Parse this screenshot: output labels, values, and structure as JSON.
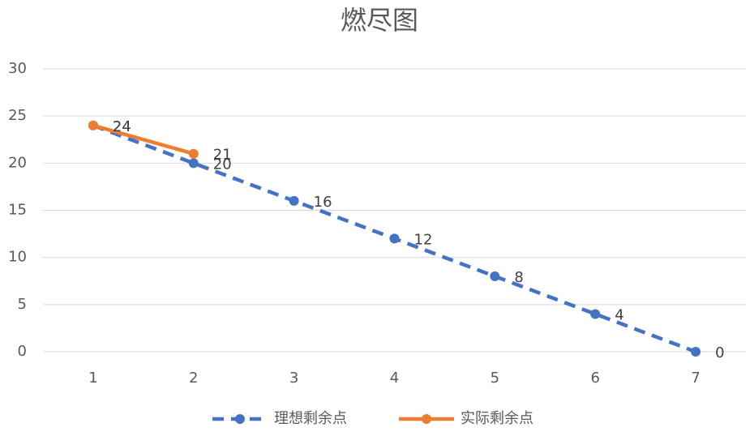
{
  "chart_data": {
    "type": "line",
    "title": "燃尽图",
    "categories": [
      "1",
      "2",
      "3",
      "4",
      "5",
      "6",
      "7"
    ],
    "series": [
      {
        "name": "理想剩余点",
        "color": "#4472c4",
        "style": "dashed",
        "values": [
          24,
          20,
          16,
          12,
          8,
          4,
          0
        ]
      },
      {
        "name": "实际剩余点",
        "color": "#ed7d31",
        "style": "solid",
        "values": [
          24,
          21,
          null,
          null,
          null,
          null,
          null
        ]
      }
    ],
    "ylim": [
      0,
      30
    ],
    "yticks": [
      0,
      5,
      10,
      15,
      20,
      25,
      30
    ],
    "grid": true,
    "legend": "bottom",
    "data_labels": true
  }
}
